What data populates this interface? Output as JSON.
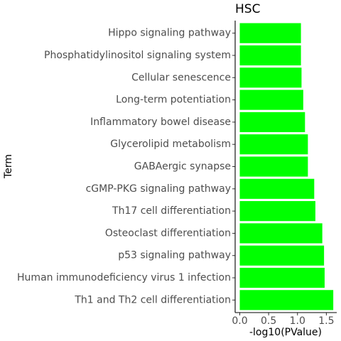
{
  "chart_data": {
    "type": "bar",
    "orientation": "horizontal",
    "title": "HSC",
    "xlabel": "-log10(PValue)",
    "ylabel": "Term",
    "categories": [
      "Hippo signaling pathway",
      "Phosphatidylinositol signaling system",
      "Cellular senescence",
      "Long-term potentiation",
      "Inflammatory bowel disease",
      "Glycerolipid metabolism",
      "GABAergic synapse",
      "cGMP-PKG signaling pathway",
      "Th17 cell differentiation",
      "Osteoclast differentiation",
      "p53 signaling pathway",
      "Human immunodeficiency virus 1 infection",
      "Th1 and Th2 cell differentiation"
    ],
    "values": [
      1.06,
      1.06,
      1.07,
      1.1,
      1.13,
      1.18,
      1.18,
      1.29,
      1.31,
      1.43,
      1.46,
      1.47,
      1.62
    ],
    "xlim": [
      -0.08,
      1.68
    ],
    "x_ticks": [
      "0.0",
      "0.5",
      "1.0",
      "1.5"
    ],
    "x_tick_values": [
      0,
      0.5,
      1.0,
      1.5
    ],
    "bar_color": "#00ff00",
    "grid": false,
    "legend": "none"
  }
}
